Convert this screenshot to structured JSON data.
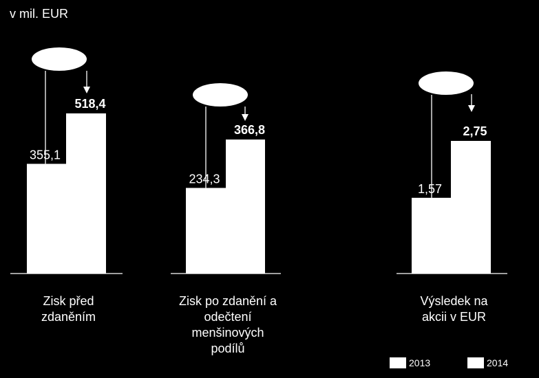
{
  "unit_label": "v mil. EUR",
  "colors": {
    "background": "#000000",
    "bars": "#ffffff",
    "text": "#ffffff",
    "value_on_bar": "#000000"
  },
  "chart_data": {
    "type": "bar",
    "series": [
      {
        "name": "2013",
        "values": [
          355.1,
          234.3,
          1.57
        ],
        "labels": [
          "355,1",
          "234,3",
          "1,57"
        ]
      },
      {
        "name": "2014",
        "values": [
          518.4,
          366.8,
          2.75
        ],
        "labels": [
          "518,4",
          "366,8",
          "2,75"
        ]
      }
    ],
    "groups": [
      {
        "label_lines": [
          "Zisk před",
          "zdaněním"
        ]
      },
      {
        "label_lines": [
          "Zisk po zdanění a",
          "odečtení",
          "menšinových",
          "podílů"
        ]
      },
      {
        "label_lines": [
          "Výsledek na",
          "akcii v EUR"
        ]
      }
    ],
    "legend": [
      "2013",
      "2014"
    ],
    "legend_position": "bottom-right",
    "grid": false,
    "annotations": "empty ellipse callout with arrow above each bar pair"
  }
}
